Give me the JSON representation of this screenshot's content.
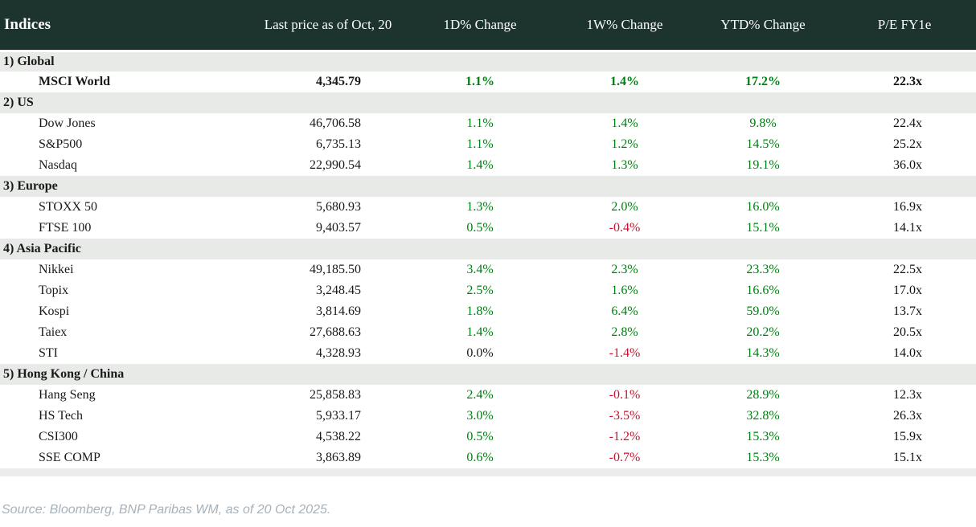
{
  "colors": {
    "header_bg": "#1d332e",
    "header_text": "#ffffff",
    "section_bg": "#e8eae8",
    "row_bg": "#ffffff",
    "positive": "#008013",
    "negative": "#c41230",
    "neutral": "#1a1a1a",
    "source_text": "#a7b1b9",
    "bottom_strip": "#ebedeb"
  },
  "chart_data": {
    "type": "table",
    "title": "Indices",
    "columns": [
      "Indices",
      "Last price as of Oct, 20",
      "1D% Change",
      "1W% Change",
      "YTD% Change",
      "P/E FY1e"
    ],
    "sections": [
      {
        "label": "1) Global",
        "rows": [
          {
            "name": "MSCI World",
            "price": "4,345.79",
            "chg_1d": "1.1%",
            "chg_1w": "1.4%",
            "ytd": "17.2%",
            "pe": "22.3x",
            "emphasis": true
          }
        ]
      },
      {
        "label": "2) US",
        "rows": [
          {
            "name": "Dow Jones",
            "price": "46,706.58",
            "chg_1d": "1.1%",
            "chg_1w": "1.4%",
            "ytd": "9.8%",
            "pe": "22.4x"
          },
          {
            "name": "S&P500",
            "price": "6,735.13",
            "chg_1d": "1.1%",
            "chg_1w": "1.2%",
            "ytd": "14.5%",
            "pe": "25.2x"
          },
          {
            "name": "Nasdaq",
            "price": "22,990.54",
            "chg_1d": "1.4%",
            "chg_1w": "1.3%",
            "ytd": "19.1%",
            "pe": "36.0x"
          }
        ]
      },
      {
        "label": "3) Europe",
        "rows": [
          {
            "name": "STOXX 50",
            "price": "5,680.93",
            "chg_1d": "1.3%",
            "chg_1w": "2.0%",
            "ytd": "16.0%",
            "pe": "16.9x"
          },
          {
            "name": "FTSE 100",
            "price": "9,403.57",
            "chg_1d": "0.5%",
            "chg_1w": "-0.4%",
            "ytd": "15.1%",
            "pe": "14.1x"
          }
        ]
      },
      {
        "label": "4) Asia Pacific",
        "rows": [
          {
            "name": "Nikkei",
            "price": "49,185.50",
            "chg_1d": "3.4%",
            "chg_1w": "2.3%",
            "ytd": "23.3%",
            "pe": "22.5x"
          },
          {
            "name": "Topix",
            "price": "3,248.45",
            "chg_1d": "2.5%",
            "chg_1w": "1.6%",
            "ytd": "16.6%",
            "pe": "17.0x"
          },
          {
            "name": "Kospi",
            "price": "3,814.69",
            "chg_1d": "1.8%",
            "chg_1w": "6.4%",
            "ytd": "59.0%",
            "pe": "13.7x"
          },
          {
            "name": "Taiex",
            "price": "27,688.63",
            "chg_1d": "1.4%",
            "chg_1w": "2.8%",
            "ytd": "20.2%",
            "pe": "20.5x"
          },
          {
            "name": "STI",
            "price": "4,328.93",
            "chg_1d": "0.0%",
            "chg_1w": "-1.4%",
            "ytd": "14.3%",
            "pe": "14.0x"
          }
        ]
      },
      {
        "label": "5) Hong Kong / China",
        "rows": [
          {
            "name": "Hang Seng",
            "price": "25,858.83",
            "chg_1d": "2.4%",
            "chg_1w": "-0.1%",
            "ytd": "28.9%",
            "pe": "12.3x"
          },
          {
            "name": "HS Tech",
            "price": "5,933.17",
            "chg_1d": "3.0%",
            "chg_1w": "-3.5%",
            "ytd": "32.8%",
            "pe": "26.3x"
          },
          {
            "name": "CSI300",
            "price": "4,538.22",
            "chg_1d": "0.5%",
            "chg_1w": "-1.2%",
            "ytd": "15.3%",
            "pe": "15.9x"
          },
          {
            "name": "SSE COMP",
            "price": "3,863.89",
            "chg_1d": "0.6%",
            "chg_1w": "-0.7%",
            "ytd": "15.3%",
            "pe": "15.1x"
          }
        ]
      }
    ],
    "source": "Source: Bloomberg, BNP Paribas WM, as of 20 Oct 2025."
  }
}
